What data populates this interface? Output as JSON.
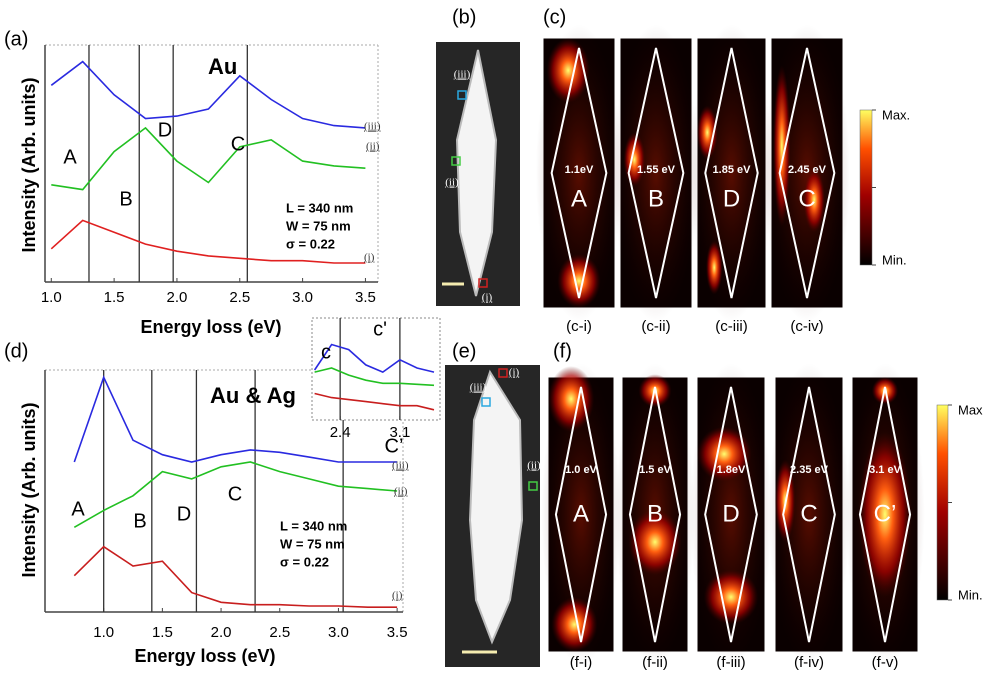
{
  "chart_data": [
    {
      "type": "line",
      "panel_label": "(a)",
      "title": "Au",
      "xlabel": "Energy loss (eV)",
      "ylabel": "Intensity (Arb. units)",
      "xlim": [
        0.95,
        3.6
      ],
      "ylim": [
        0,
        100
      ],
      "xticks": [
        {
          "value": 1,
          "label": "1.0"
        },
        {
          "value": 1.5,
          "label": "1.5"
        },
        {
          "value": 2,
          "label": "2.0"
        },
        {
          "value": 2.5,
          "label": "2.5"
        },
        {
          "value": 3,
          "label": "3.0"
        },
        {
          "value": 3.5,
          "label": "3.5"
        }
      ],
      "x": [
        1.0,
        1.25,
        1.5,
        1.75,
        2.0,
        2.25,
        2.5,
        2.75,
        3.0,
        3.25,
        3.5
      ],
      "series": [
        {
          "name": "(i)",
          "color": "#e02020",
          "values": [
            14,
            26,
            21,
            16,
            13,
            11,
            10,
            9,
            9,
            8,
            8
          ]
        },
        {
          "name": "(ii)",
          "color": "#22c022",
          "values": [
            41,
            39,
            55,
            65,
            51,
            42,
            57,
            60,
            51,
            49,
            48
          ]
        },
        {
          "name": "(iii)",
          "color": "#2a2ae0",
          "values": [
            83,
            93,
            79,
            69,
            70,
            73,
            87,
            77,
            69,
            66,
            65
          ]
        }
      ],
      "vlines": [
        1.3,
        1.7,
        1.97,
        2.56
      ],
      "peak_labels": [
        "A",
        "B",
        "D",
        "C"
      ],
      "parameters": [
        "L = 340 nm",
        "W = 75 nm",
        "σ = 0.22"
      ]
    },
    {
      "type": "line",
      "panel_label": "(d)",
      "title": "Au & Ag",
      "xlabel": "Energy loss (eV)",
      "ylabel": "Intensity (Arb. units)",
      "xlim": [
        0.5,
        3.55
      ],
      "ylim": [
        0,
        100
      ],
      "xticks": [
        {
          "value": 1,
          "label": "1.0"
        },
        {
          "value": 1.5,
          "label": "1.5"
        },
        {
          "value": 2,
          "label": "2.0"
        },
        {
          "value": 2.5,
          "label": "2.5"
        },
        {
          "value": 3,
          "label": "3.0"
        },
        {
          "value": 3.5,
          "label": "3.5"
        }
      ],
      "x": [
        0.75,
        1.0,
        1.25,
        1.5,
        1.75,
        2.0,
        2.25,
        2.5,
        2.75,
        3.0,
        3.25,
        3.5
      ],
      "series": [
        {
          "name": "(i)",
          "color": "#c81e1e",
          "values": [
            15,
            27,
            19,
            21,
            8,
            4,
            3,
            3,
            2.5,
            2.5,
            2,
            2
          ]
        },
        {
          "name": "(ii)",
          "color": "#22c022",
          "values": [
            35,
            42,
            48,
            58,
            55,
            60,
            62,
            58,
            55,
            52,
            51,
            50
          ]
        },
        {
          "name": "(iii)",
          "color": "#2a2ae0",
          "values": [
            62,
            97,
            71,
            65,
            62,
            65,
            67,
            66,
            64,
            62,
            62,
            62
          ]
        }
      ],
      "vlines": [
        1.0,
        1.41,
        1.79,
        2.29,
        3.04
      ],
      "peak_labels": [
        "A",
        "B",
        "D",
        "C",
        "C’"
      ],
      "parameters": [
        "L = 340 nm",
        "W = 75 nm",
        "σ = 0.22"
      ]
    },
    {
      "type": "line",
      "xlim": [
        2.07,
        3.57
      ],
      "ylim": [
        0,
        100
      ],
      "xticks": [
        2.4,
        3.1
      ],
      "x": [
        2.1,
        2.3,
        2.5,
        2.7,
        2.9,
        3.1,
        3.3,
        3.5
      ],
      "series": [
        {
          "color": "#c81e1e",
          "values": [
            26,
            22,
            20,
            18,
            16,
            14,
            14,
            10
          ]
        },
        {
          "color": "#22c022",
          "values": [
            47,
            51,
            44,
            39,
            36,
            36,
            35,
            34
          ]
        },
        {
          "color": "#2a2ae0",
          "values": [
            49,
            74,
            69,
            54,
            47,
            59,
            51,
            47
          ]
        }
      ],
      "vlines": [
        2.4,
        3.1
      ],
      "peak_labels": [
        "c",
        "c'"
      ]
    }
  ],
  "images": {
    "b": {
      "panel_label": "(b)",
      "markers": [
        "(iii)",
        "(ii)",
        "(i)"
      ]
    },
    "e": {
      "panel_label": "(e)",
      "markers": [
        "(i)",
        "(iii)",
        "(ii)"
      ]
    }
  },
  "maps": {
    "c": {
      "panel_label": "(c)",
      "energies": [
        "1.1eV",
        "1.55 eV",
        "1.85 eV",
        "2.45 eV"
      ],
      "modes": [
        "A",
        "B",
        "D",
        "C"
      ],
      "captions": [
        "(c-i)",
        "(c-ii)",
        "(c-iii)",
        "(c-iv)"
      ],
      "colorbar": {
        "max": "Max.",
        "min": "Min."
      }
    },
    "f": {
      "panel_label": "(f)",
      "energies": [
        "1.0 eV",
        "1.5 eV",
        "1.8eV",
        "2.35 eV",
        "3.1 eV"
      ],
      "modes": [
        "A",
        "B",
        "D",
        "C",
        "C’"
      ],
      "captions": [
        "(f-i)",
        "(f-ii)",
        "(f-iii)",
        "(f-iv)",
        "(f-v)"
      ],
      "colorbar": {
        "max": "Max",
        "min": "Min."
      }
    }
  }
}
